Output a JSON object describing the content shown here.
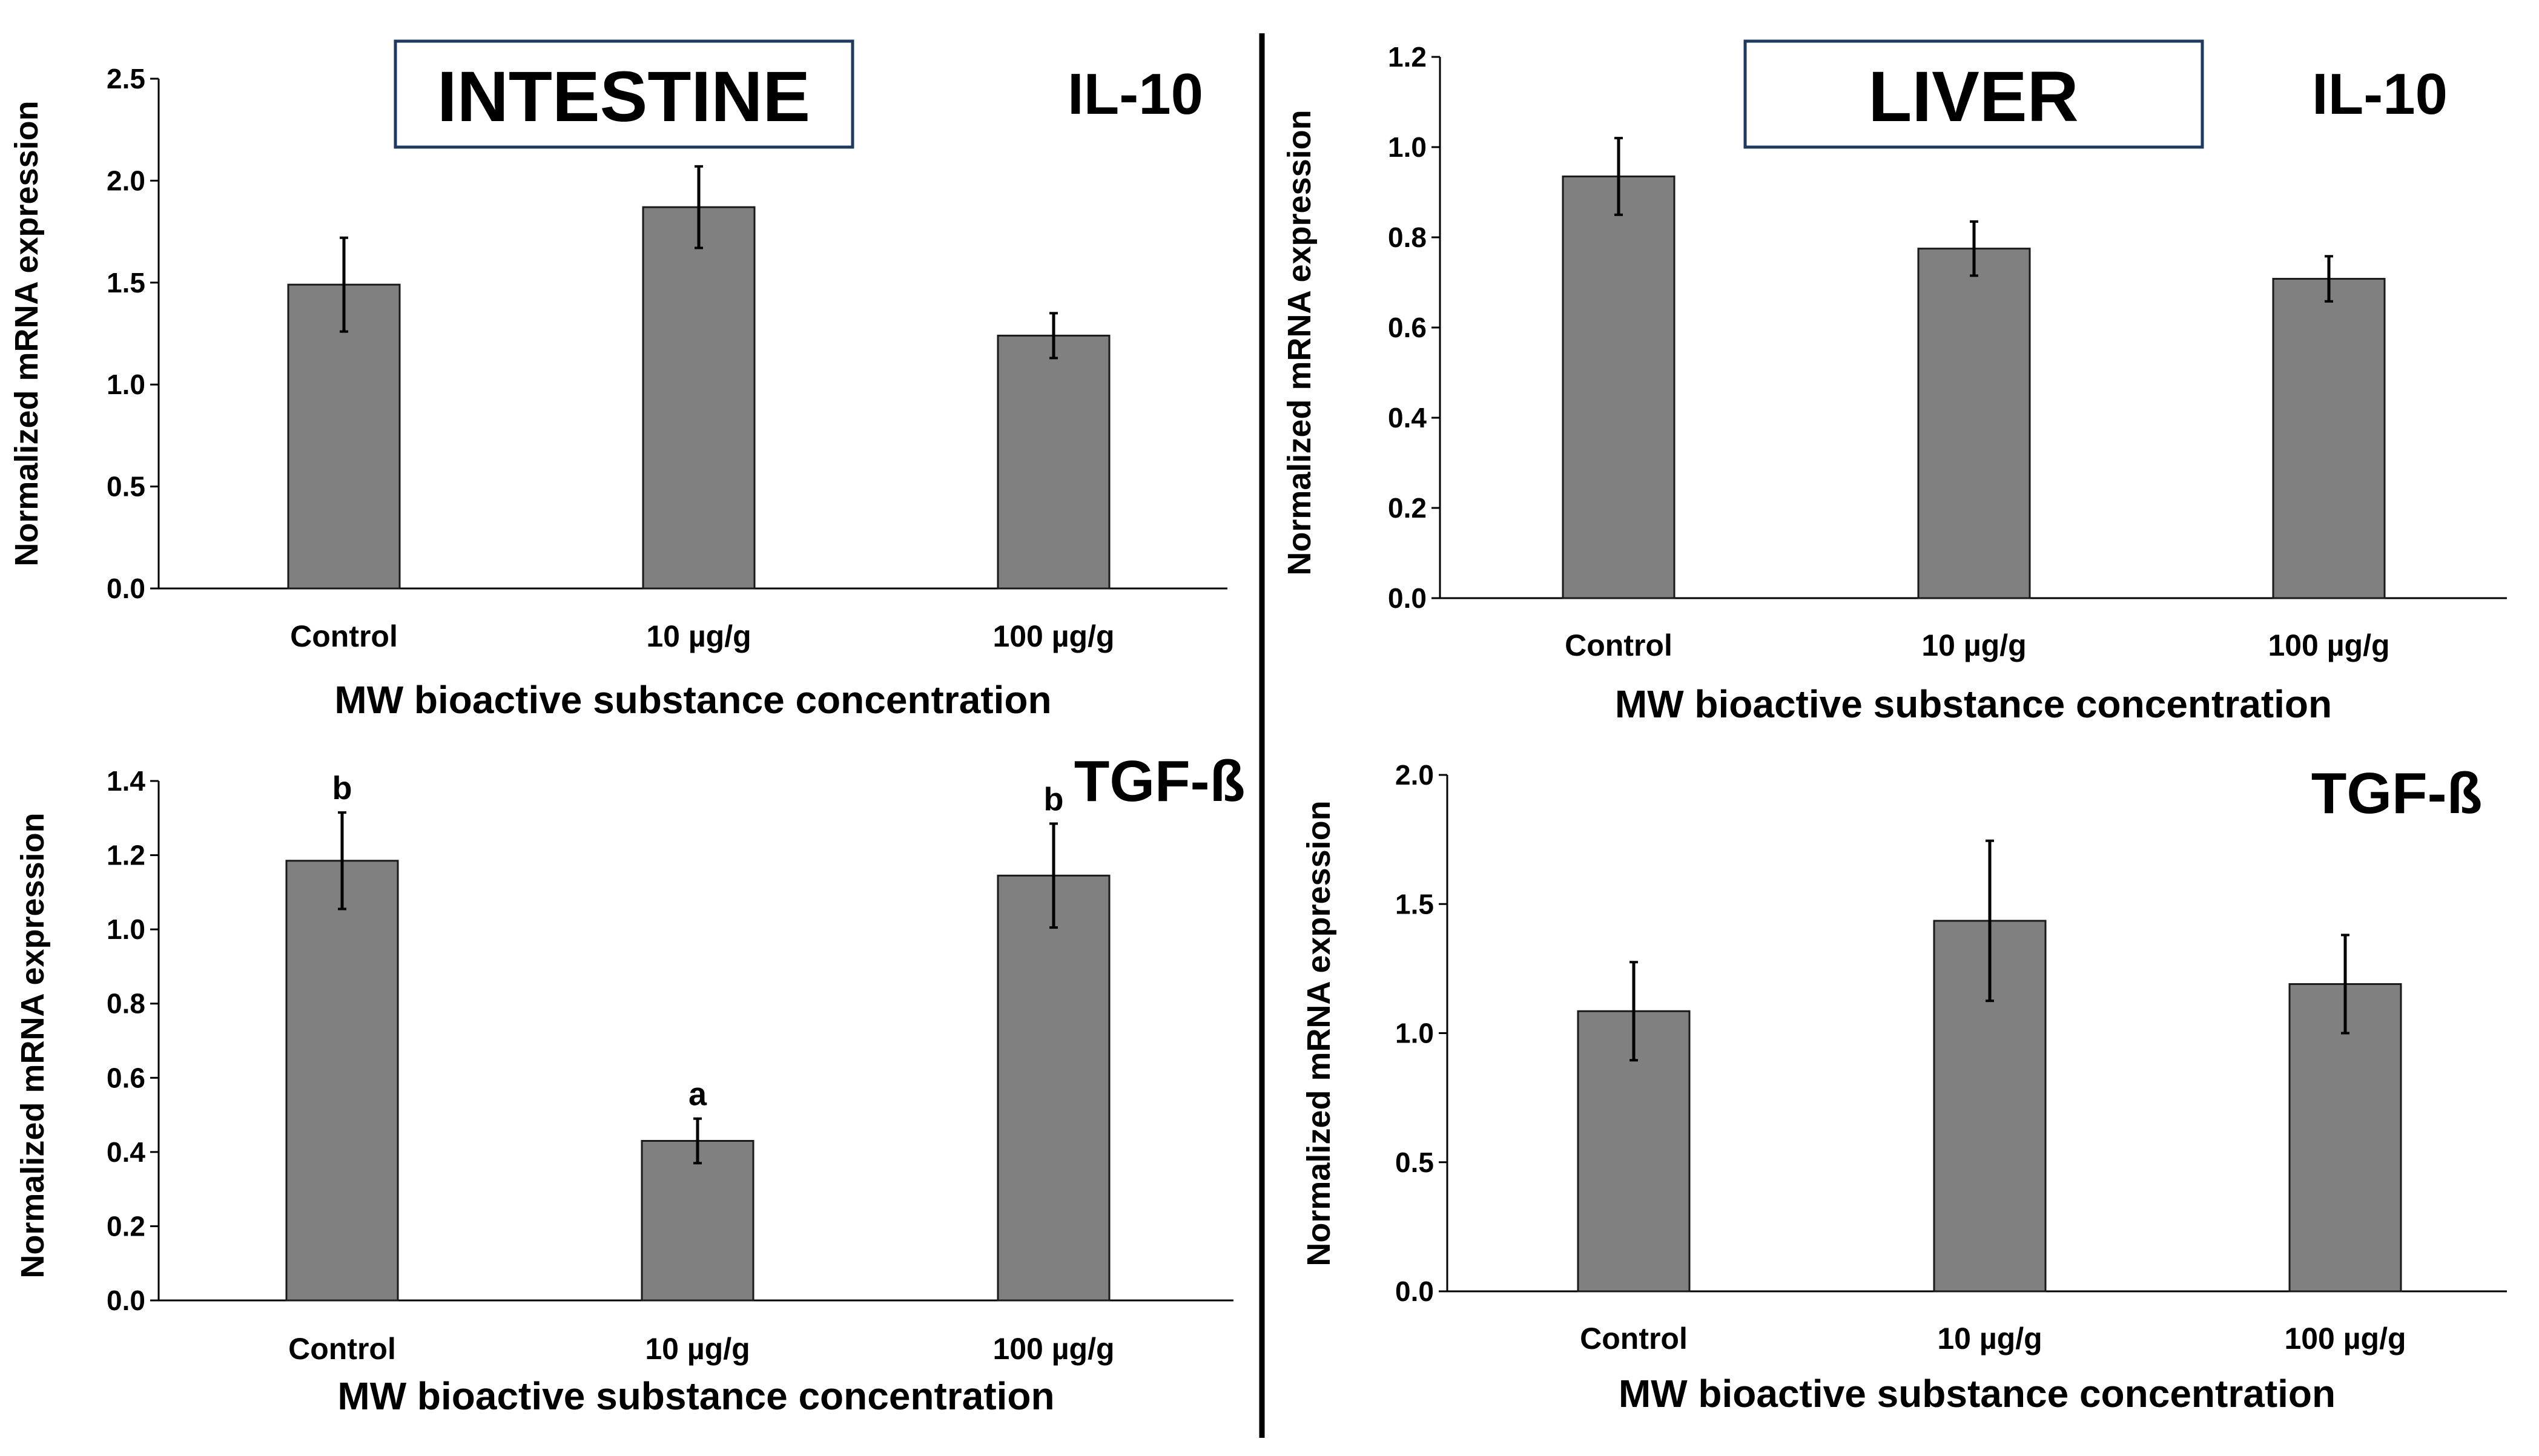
{
  "colors": {
    "bar": "#808080",
    "bar_stroke": "#1a1a1a",
    "title_box_stroke": "#1f3a5f",
    "divider": "#000000"
  },
  "sections": {
    "left_title": "INTESTINE",
    "right_title": "LIVER"
  },
  "chart_data": [
    {
      "id": "intestine-il10",
      "type": "bar",
      "gene": "IL-10",
      "tissue": "INTESTINE",
      "categories": [
        "Control",
        "10 µg/g",
        "100 µg/g"
      ],
      "values": [
        1.49,
        1.87,
        1.24
      ],
      "errors": [
        0.23,
        0.2,
        0.11
      ],
      "letters": [],
      "ylim": [
        0,
        2.5
      ],
      "yticks": [
        "0.0",
        "0.5",
        "1.0",
        "1.5",
        "2.0",
        "2.5"
      ],
      "ylabel": "Normalized mRNA expression",
      "xlabel": "MW bioactive substance concentration"
    },
    {
      "id": "liver-il10",
      "type": "bar",
      "gene": "IL-10",
      "tissue": "LIVER",
      "categories": [
        "Control",
        "10 µg/g",
        "100 µg/g"
      ],
      "values": [
        0.935,
        0.775,
        0.708
      ],
      "errors": [
        0.085,
        0.06,
        0.05
      ],
      "letters": [],
      "ylim": [
        0,
        1.2
      ],
      "yticks": [
        "0.0",
        "0.2",
        "0.4",
        "0.6",
        "0.8",
        "1.0",
        "1.2"
      ],
      "ylabel": "Normalized mRNA expression",
      "xlabel": "MW bioactive substance concentration"
    },
    {
      "id": "intestine-tgfb",
      "type": "bar",
      "gene": "TGF-ß",
      "tissue": "INTESTINE",
      "categories": [
        "Control",
        "10 µg/g",
        "100 µg/g"
      ],
      "values": [
        1.185,
        0.43,
        1.145
      ],
      "errors": [
        0.13,
        0.06,
        0.14
      ],
      "letters": [
        "b",
        "a",
        "b"
      ],
      "ylim": [
        0,
        1.4
      ],
      "yticks": [
        "0.0",
        "0.2",
        "0.4",
        "0.6",
        "0.8",
        "1.0",
        "1.2",
        "1.4"
      ],
      "ylabel": "Normalized mRNA expression",
      "xlabel": "MW bioactive substance concentration"
    },
    {
      "id": "liver-tgfb",
      "type": "bar",
      "gene": "TGF-ß",
      "tissue": "LIVER",
      "categories": [
        "Control",
        "10 µg/g",
        "100 µg/g"
      ],
      "values": [
        1.085,
        1.435,
        1.19
      ],
      "errors": [
        0.19,
        0.31,
        0.19
      ],
      "letters": [],
      "ylim": [
        0,
        2.0
      ],
      "yticks": [
        "0.0",
        "0.5",
        "1.0",
        "1.5",
        "2.0"
      ],
      "ylabel": "Normalized mRNA expression",
      "xlabel": "MW bioactive substance concentration"
    }
  ]
}
